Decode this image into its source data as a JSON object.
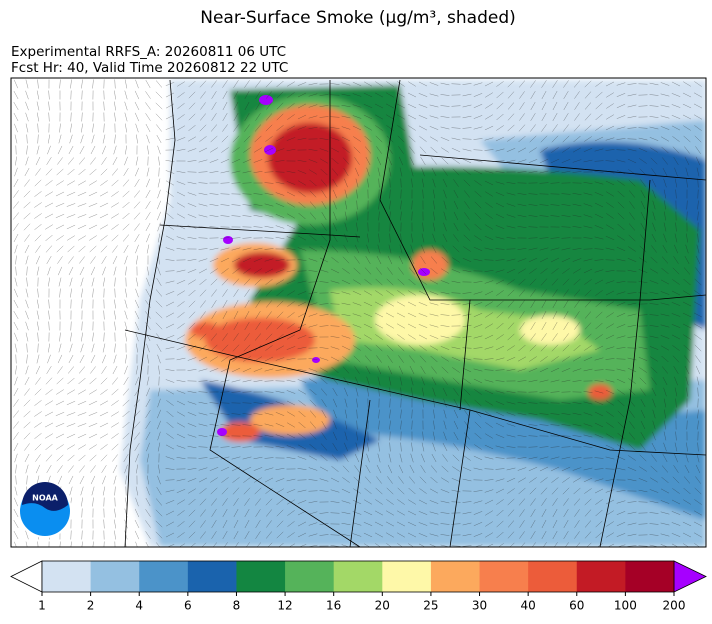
{
  "title": "Near-Surface Smoke (μg/m³, shaded)",
  "run": "Experimental RRFS_A: 20260811 06 UTC",
  "forecast": "Fcst Hr: 40, Valid Time 20260812 22 UTC",
  "logo": "NOAA",
  "colorbar": {
    "levels": [
      1,
      2,
      4,
      6,
      8,
      12,
      16,
      20,
      25,
      30,
      40,
      60,
      100,
      200
    ],
    "colors": [
      "#d3e2f2",
      "#94c0e1",
      "#4b93c9",
      "#1a63ad",
      "#138641",
      "#55b35a",
      "#a3d867",
      "#fef8a8",
      "#fca95d",
      "#f77f4d",
      "#ec5c3a",
      "#c31b25",
      "#a50026"
    ],
    "under_color": "#ffffff",
    "over_color": "#a600ff"
  }
}
